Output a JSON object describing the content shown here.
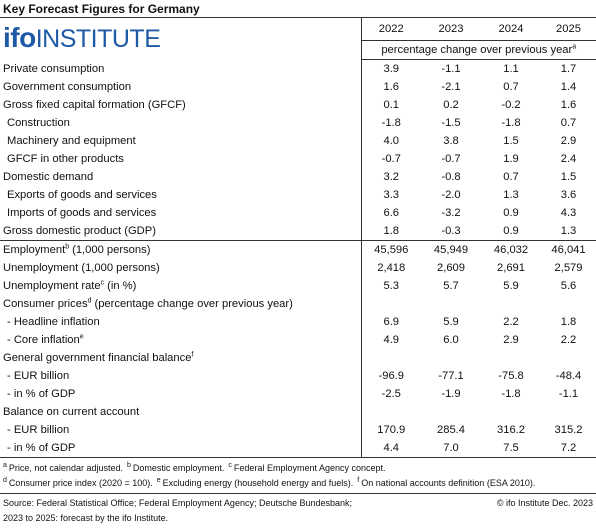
{
  "header": {
    "title": "Key Forecast Figures for Germany",
    "logo_mark": "ifo",
    "logo_text": "INSTITUTE"
  },
  "table": {
    "years": [
      "2022",
      "2023",
      "2024",
      "2025"
    ],
    "unit": "percentage change over previous year",
    "unit_sup": "a",
    "rows": [
      {
        "label": "Private consumption",
        "values": [
          "3.9",
          "-1.1",
          "1.1",
          "1.7"
        ]
      },
      {
        "label": "Government consumption",
        "values": [
          "1.6",
          "-2.1",
          "0.7",
          "1.4"
        ]
      },
      {
        "label": "Gross fixed capital formation (GFCF)",
        "values": [
          "0.1",
          "0.2",
          "-0.2",
          "1.6"
        ]
      },
      {
        "label": "Construction",
        "values": [
          "-1.8",
          "-1.5",
          "-1.8",
          "0.7"
        ]
      },
      {
        "label": "Machinery and equipment",
        "values": [
          "4.0",
          "3.8",
          "1.5",
          "2.9"
        ]
      },
      {
        "label": "GFCF in other products",
        "values": [
          "-0.7",
          "-0.7",
          "1.9",
          "2.4"
        ]
      },
      {
        "label": "Domestic demand",
        "values": [
          "3.2",
          "-0.8",
          "0.7",
          "1.5"
        ]
      },
      {
        "label": "Exports of goods and services",
        "values": [
          "3.3",
          "-2.0",
          "1.3",
          "3.6"
        ]
      },
      {
        "label": "Imports of goods and services",
        "values": [
          "6.6",
          "-3.2",
          "0.9",
          "4.3"
        ]
      },
      {
        "label": "Gross domestic product (GDP)",
        "values": [
          "1.8",
          "-0.3",
          "0.9",
          "1.3"
        ]
      },
      {
        "label": "Employment",
        "sup": "b",
        "suffix": "(1,000 persons)",
        "values": [
          "45,596",
          "45,949",
          "46,032",
          "46,041"
        ]
      },
      {
        "label": "Unemployment (1,000 persons)",
        "values": [
          "2,418",
          "2,609",
          "2,691",
          "2,579"
        ]
      },
      {
        "label": "Unemployment rate",
        "sup": "c",
        "suffix": "(in %)",
        "values": [
          "5.3",
          "5.7",
          "5.9",
          "5.6"
        ]
      },
      {
        "label": "Consumer prices",
        "sup": "d",
        "suffix": "(percentage change over previous year)"
      },
      {
        "label": "- Headline inflation",
        "values": [
          "6.9",
          "5.9",
          "2.2",
          "1.8"
        ]
      },
      {
        "label": "- Core inflation",
        "sup": "e",
        "values": [
          "4.9",
          "6.0",
          "2.9",
          "2.2"
        ]
      },
      {
        "label": "General government financial balance",
        "sup": "f"
      },
      {
        "label": "- EUR billion",
        "values": [
          "-96.9",
          "-77.1",
          "-75.8",
          "-48.4"
        ]
      },
      {
        "label": "- in % of GDP",
        "values": [
          "-2.5",
          "-1.9",
          "-1.8",
          "-1.1"
        ]
      },
      {
        "label": "Balance on current account"
      },
      {
        "label": "- EUR billion",
        "values": [
          "170.9",
          "285.4",
          "316.2",
          "315.2"
        ]
      },
      {
        "label": "- in % of GDP",
        "values": [
          "4.4",
          "7.0",
          "7.5",
          "7.2"
        ]
      }
    ]
  },
  "footnotes": [
    [
      {
        "mark": "a",
        "text": "Price, not calendar adjusted."
      },
      {
        "mark": "b",
        "text": "Domestic employment."
      },
      {
        "mark": "c",
        "text": "Federal Employment Agency concept."
      }
    ],
    [
      {
        "mark": "d",
        "text": "Consumer price index (2020 = 100)."
      },
      {
        "mark": "e",
        "text": "Excluding energy (household energy and fuels)."
      },
      {
        "mark": "f",
        "text": "On national accounts definition (ESA 2010)."
      }
    ]
  ],
  "source": {
    "lines": [
      "Source: Federal Statistical Office; Federal Employment Agency; Deutsche Bundesbank;",
      "2023 to 2025: forecast by the ifo Institute."
    ],
    "copyright": "© ifo Institute Dec. 2023"
  }
}
